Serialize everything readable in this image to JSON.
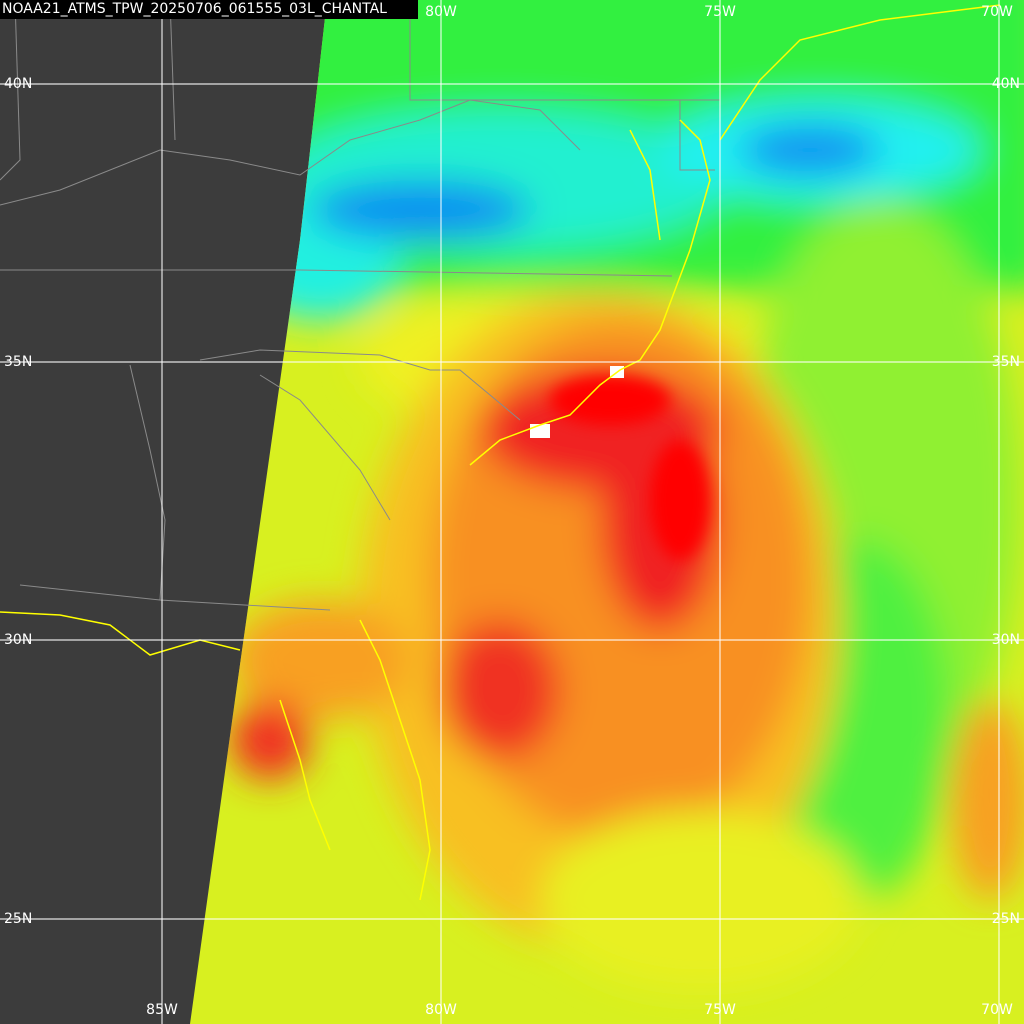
{
  "title": "NOAA21_ATMS_TPW_20250706_061555_03L_CHANTAL",
  "latitude_labels": [
    "40N",
    "35N",
    "30N",
    "25N"
  ],
  "longitude_labels_top": [
    "80W",
    "75W",
    "70W"
  ],
  "longitude_labels_bottom": [
    "85W",
    "80W",
    "75W",
    "70W"
  ]
}
